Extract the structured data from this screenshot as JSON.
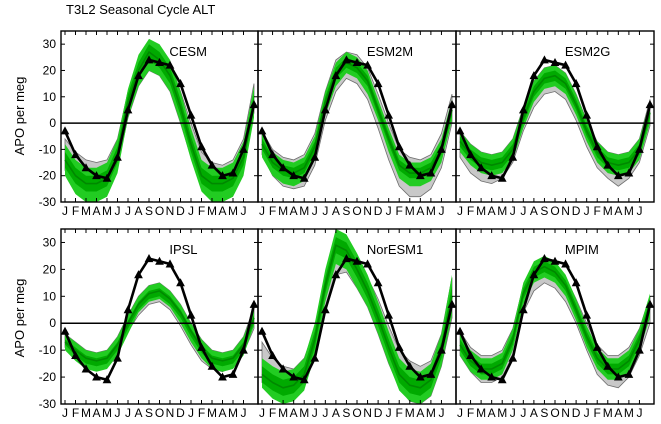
{
  "title": "T3L2 Seasonal Cycle ALT",
  "ylabel": "APO per meg",
  "colors": {
    "gray_band": "#c8c8c8",
    "gray_edge": "#6e6e6e",
    "green_outer": "#22cc22",
    "green_inner": "#00aa00",
    "green_line": "#008800",
    "obs": "#000000"
  },
  "month_labels": [
    "J",
    "F",
    "M",
    "A",
    "M",
    "J",
    "J",
    "A",
    "S",
    "O",
    "N",
    "D",
    "J",
    "F",
    "M",
    "A",
    "M",
    "J"
  ],
  "chart_data": [
    {
      "type": "line",
      "name": "CESM",
      "ylim": [
        -30,
        35
      ],
      "yticks": [
        -30,
        -20,
        -10,
        0,
        10,
        20,
        30
      ],
      "obs": [
        -3,
        -12,
        -17,
        -20,
        -21,
        -13,
        5,
        18,
        24,
        23,
        22,
        15,
        3,
        -9,
        -16,
        -20,
        -19,
        -10,
        7
      ],
      "model_mean": [
        -14,
        -20,
        -23,
        -23,
        -21,
        -12,
        8,
        20,
        27,
        24,
        18,
        6,
        -8,
        -20,
        -23,
        -23,
        -21,
        -13,
        8
      ],
      "green_outer_lo": [
        -20,
        -27,
        -30,
        -30,
        -28,
        -19,
        2,
        14,
        20,
        18,
        12,
        0,
        -14,
        -26,
        -30,
        -30,
        -28,
        -20,
        2
      ],
      "green_outer_hi": [
        -8,
        -14,
        -17,
        -17,
        -15,
        -6,
        13,
        26,
        32,
        30,
        24,
        12,
        -2,
        -14,
        -17,
        -17,
        -15,
        -7,
        14
      ],
      "green_inner_lo": [
        -17,
        -23,
        -26,
        -26,
        -24,
        -15,
        5,
        17,
        24,
        21,
        15,
        3,
        -11,
        -23,
        -26,
        -26,
        -24,
        -16,
        5
      ],
      "green_inner_hi": [
        -11,
        -17,
        -20,
        -20,
        -18,
        -9,
        11,
        23,
        30,
        27,
        21,
        9,
        -5,
        -17,
        -20,
        -20,
        -18,
        -10,
        11
      ],
      "gray_lo": [
        -18,
        -24,
        -26,
        -26,
        -24,
        -16,
        2,
        14,
        20,
        18,
        12,
        0,
        -13,
        -24,
        -27,
        -27,
        -24,
        -16,
        4
      ],
      "gray_hi": [
        -6,
        -11,
        -14,
        -15,
        -14,
        -6,
        12,
        24,
        30,
        28,
        23,
        12,
        0,
        -11,
        -15,
        -16,
        -14,
        -6,
        15
      ]
    },
    {
      "type": "line",
      "name": "ESM2M",
      "ylim": [
        -30,
        35
      ],
      "yticks": [
        -30,
        -20,
        -10,
        0,
        10,
        20,
        30
      ],
      "obs": [
        -3,
        -12,
        -17,
        -20,
        -21,
        -13,
        5,
        18,
        24,
        23,
        22,
        15,
        3,
        -9,
        -16,
        -20,
        -19,
        -10,
        7
      ],
      "model_mean": [
        -8,
        -15,
        -18,
        -19,
        -17,
        -9,
        8,
        19,
        23,
        21,
        16,
        5,
        -6,
        -16,
        -19,
        -19,
        -17,
        -10,
        5
      ],
      "green_outer_lo": [
        -13,
        -20,
        -23,
        -24,
        -22,
        -14,
        3,
        14,
        19,
        17,
        11,
        1,
        -11,
        -21,
        -24,
        -24,
        -22,
        -15,
        1
      ],
      "green_outer_hi": [
        -4,
        -11,
        -14,
        -15,
        -13,
        -5,
        12,
        23,
        27,
        25,
        20,
        9,
        -2,
        -12,
        -15,
        -15,
        -13,
        -6,
        9
      ],
      "green_inner_lo": [
        -10,
        -17,
        -20,
        -21,
        -19,
        -11,
        6,
        17,
        21,
        19,
        14,
        3,
        -8,
        -18,
        -21,
        -21,
        -19,
        -12,
        3
      ],
      "green_inner_hi": [
        -6,
        -13,
        -16,
        -17,
        -15,
        -7,
        10,
        21,
        25,
        23,
        18,
        7,
        -4,
        -14,
        -17,
        -17,
        -15,
        -8,
        7
      ],
      "gray_lo": [
        -12,
        -20,
        -24,
        -25,
        -24,
        -16,
        1,
        12,
        17,
        15,
        9,
        -2,
        -14,
        -24,
        -28,
        -28,
        -25,
        -17,
        0
      ],
      "gray_hi": [
        -3,
        -10,
        -13,
        -14,
        -12,
        -4,
        12,
        24,
        27,
        26,
        21,
        11,
        0,
        -10,
        -13,
        -14,
        -12,
        -4,
        11
      ]
    },
    {
      "type": "line",
      "name": "ESM2G",
      "ylim": [
        -30,
        35
      ],
      "yticks": [
        -30,
        -20,
        -10,
        0,
        10,
        20,
        30
      ],
      "obs": [
        -3,
        -12,
        -17,
        -20,
        -21,
        -13,
        5,
        18,
        24,
        23,
        22,
        15,
        3,
        -9,
        -16,
        -20,
        -19,
        -10,
        7
      ],
      "model_mean": [
        -7,
        -12,
        -15,
        -16,
        -15,
        -10,
        2,
        12,
        17,
        18,
        15,
        7,
        -3,
        -11,
        -15,
        -16,
        -15,
        -10,
        4
      ],
      "green_outer_lo": [
        -11,
        -16,
        -19,
        -20,
        -19,
        -14,
        -2,
        8,
        13,
        14,
        11,
        3,
        -7,
        -15,
        -19,
        -20,
        -19,
        -14,
        0
      ],
      "green_outer_hi": [
        -3,
        -8,
        -11,
        -12,
        -11,
        -6,
        6,
        16,
        21,
        22,
        19,
        11,
        1,
        -7,
        -11,
        -12,
        -11,
        -6,
        8
      ],
      "green_inner_lo": [
        -9,
        -14,
        -17,
        -18,
        -17,
        -12,
        0,
        10,
        15,
        16,
        13,
        5,
        -5,
        -13,
        -17,
        -18,
        -17,
        -12,
        2
      ],
      "green_inner_hi": [
        -5,
        -10,
        -13,
        -14,
        -13,
        -8,
        4,
        14,
        19,
        20,
        17,
        9,
        -1,
        -9,
        -13,
        -14,
        -13,
        -8,
        6
      ],
      "gray_lo": [
        -13,
        -19,
        -22,
        -23,
        -21,
        -15,
        -3,
        6,
        11,
        12,
        9,
        1,
        -9,
        -17,
        -21,
        -24,
        -21,
        -15,
        -1
      ],
      "gray_hi": [
        -3,
        -8,
        -11,
        -12,
        -11,
        -6,
        6,
        16,
        21,
        22,
        19,
        11,
        1,
        -7,
        -11,
        -12,
        -11,
        -6,
        9
      ]
    },
    {
      "type": "line",
      "name": "IPSL",
      "ylim": [
        -30,
        35
      ],
      "yticks": [
        -30,
        -20,
        -10,
        0,
        10,
        20,
        30
      ],
      "obs": [
        -3,
        -12,
        -17,
        -20,
        -21,
        -13,
        5,
        18,
        24,
        23,
        22,
        15,
        3,
        -9,
        -16,
        -20,
        -19,
        -10,
        7
      ],
      "model_mean": [
        -7,
        -10,
        -13,
        -14,
        -13,
        -8,
        0,
        7,
        11,
        12,
        9,
        4,
        -3,
        -9,
        -13,
        -14,
        -13,
        -8,
        2
      ],
      "green_outer_lo": [
        -10,
        -14,
        -17,
        -18,
        -17,
        -12,
        -4,
        4,
        8,
        9,
        6,
        0,
        -7,
        -13,
        -17,
        -18,
        -17,
        -12,
        -1
      ],
      "green_outer_hi": [
        -4,
        -7,
        -10,
        -11,
        -10,
        -5,
        3,
        10,
        14,
        15,
        12,
        7,
        0,
        -6,
        -10,
        -11,
        -10,
        -5,
        5
      ],
      "green_inner_lo": [
        -8,
        -12,
        -15,
        -16,
        -15,
        -10,
        -2,
        5,
        9,
        10,
        7,
        2,
        -5,
        -11,
        -15,
        -16,
        -15,
        -10,
        0
      ],
      "green_inner_hi": [
        -6,
        -9,
        -12,
        -13,
        -12,
        -7,
        1,
        8,
        12,
        13,
        10,
        5,
        -2,
        -8,
        -12,
        -13,
        -12,
        -7,
        3
      ],
      "gray_lo": [
        -9,
        -13,
        -16,
        -17,
        -16,
        -11,
        -3,
        3,
        7,
        8,
        5,
        -1,
        -8,
        -14,
        -17,
        -18,
        -16,
        -11,
        -2
      ],
      "gray_hi": [
        -4,
        -7,
        -10,
        -11,
        -10,
        -5,
        3,
        10,
        14,
        15,
        12,
        7,
        0,
        -6,
        -10,
        -11,
        -10,
        -5,
        6
      ]
    },
    {
      "type": "line",
      "name": "NorESM1",
      "ylim": [
        -30,
        35
      ],
      "yticks": [
        -30,
        -20,
        -10,
        0,
        10,
        20,
        30
      ],
      "obs": [
        -3,
        -12,
        -17,
        -20,
        -21,
        -13,
        5,
        18,
        24,
        23,
        22,
        15,
        3,
        -9,
        -16,
        -20,
        -19,
        -10,
        7
      ],
      "model_mean": [
        -19,
        -22,
        -24,
        -23,
        -19,
        -6,
        14,
        29,
        27,
        20,
        12,
        2,
        -9,
        -19,
        -23,
        -24,
        -21,
        -10,
        10
      ],
      "green_outer_lo": [
        -24,
        -28,
        -30,
        -29,
        -25,
        -12,
        8,
        22,
        20,
        13,
        6,
        -4,
        -15,
        -25,
        -29,
        -30,
        -27,
        -16,
        3
      ],
      "green_outer_hi": [
        -13,
        -16,
        -18,
        -17,
        -13,
        0,
        20,
        35,
        33,
        26,
        18,
        8,
        -3,
        -13,
        -17,
        -18,
        -15,
        -4,
        18
      ],
      "green_inner_lo": [
        -22,
        -25,
        -27,
        -26,
        -22,
        -9,
        11,
        26,
        24,
        17,
        9,
        -1,
        -12,
        -22,
        -26,
        -27,
        -24,
        -13,
        6
      ],
      "green_inner_hi": [
        -16,
        -19,
        -21,
        -20,
        -16,
        -3,
        17,
        32,
        30,
        23,
        15,
        5,
        -6,
        -16,
        -20,
        -21,
        -18,
        -7,
        14
      ],
      "gray_lo": [
        -22,
        -27,
        -29,
        -28,
        -24,
        -12,
        6,
        18,
        19,
        13,
        6,
        -4,
        -15,
        -24,
        -29,
        -30,
        -27,
        -16,
        2
      ],
      "gray_hi": [
        -7,
        -13,
        -16,
        -17,
        -13,
        -2,
        15,
        27,
        27,
        22,
        17,
        9,
        -1,
        -10,
        -14,
        -16,
        -14,
        -4,
        17
      ]
    },
    {
      "type": "line",
      "name": "MPIM",
      "ylim": [
        -30,
        35
      ],
      "yticks": [
        -30,
        -20,
        -10,
        0,
        10,
        20,
        30
      ],
      "obs": [
        -3,
        -12,
        -17,
        -20,
        -21,
        -13,
        5,
        18,
        24,
        23,
        22,
        15,
        3,
        -9,
        -16,
        -20,
        -19,
        -10,
        7
      ],
      "model_mean": [
        -8,
        -14,
        -17,
        -17,
        -15,
        -6,
        11,
        19,
        21,
        19,
        14,
        5,
        -5,
        -13,
        -17,
        -17,
        -14,
        -6,
        6
      ],
      "green_outer_lo": [
        -12,
        -18,
        -21,
        -21,
        -19,
        -10,
        7,
        15,
        17,
        15,
        10,
        1,
        -9,
        -17,
        -21,
        -21,
        -18,
        -10,
        2
      ],
      "green_outer_hi": [
        -4,
        -10,
        -13,
        -13,
        -11,
        -2,
        15,
        23,
        25,
        23,
        18,
        9,
        -1,
        -9,
        -13,
        -13,
        -10,
        -2,
        11
      ],
      "green_inner_lo": [
        -10,
        -16,
        -19,
        -19,
        -17,
        -8,
        9,
        17,
        19,
        17,
        12,
        3,
        -7,
        -15,
        -19,
        -19,
        -16,
        -8,
        4
      ],
      "green_inner_hi": [
        -6,
        -12,
        -15,
        -15,
        -13,
        -4,
        13,
        21,
        23,
        21,
        16,
        7,
        -3,
        -11,
        -15,
        -15,
        -12,
        -4,
        9
      ],
      "gray_lo": [
        -12,
        -18,
        -22,
        -22,
        -20,
        -12,
        4,
        12,
        15,
        13,
        8,
        0,
        -10,
        -19,
        -23,
        -24,
        -20,
        -12,
        0
      ],
      "gray_hi": [
        -3,
        -9,
        -12,
        -12,
        -10,
        -2,
        14,
        22,
        24,
        22,
        17,
        9,
        0,
        -8,
        -12,
        -12,
        -9,
        -2,
        10
      ]
    }
  ]
}
